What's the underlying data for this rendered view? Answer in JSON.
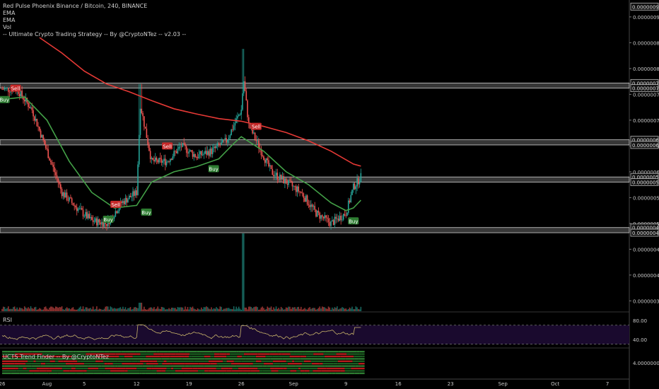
{
  "header": {
    "symbol_line": "Red Pulse Phoenix Binance / Bitcoin, 240, BINANCE",
    "indicators": [
      "EMA",
      "EMA",
      "Vol",
      "-- Ultimate Crypto Trading Strategy -- By @CryptoNTez -- v2.03 --"
    ]
  },
  "rsi_pane": {
    "label": "RSI"
  },
  "trend_pane": {
    "label": "UCTS Trend Finder -- By @CryptoNTez"
  },
  "colors": {
    "up": "#26a69a",
    "down": "#ef5350",
    "ema_slow": "#e53935",
    "ema_fast": "#43a047",
    "rsi_line": "#c8b46a",
    "rsi_band": "#1a0a2e",
    "sr_band": "#9e9e9e",
    "buy": "#2e7d32",
    "sell": "#c62828"
  },
  "chart_data": [
    {
      "type": "candlestick",
      "pane": "price",
      "x_ticks": [
        "26",
        "Aug",
        "5",
        "12",
        "19",
        "26",
        "Sep",
        "9",
        "16",
        "23",
        "Sep",
        "Oct",
        "7"
      ],
      "x_tick_positions_days": [
        0,
        6,
        11,
        18,
        25,
        32,
        39,
        46,
        53,
        60,
        67,
        74,
        81
      ],
      "y_ticks": [
        "0.00000090",
        "0.00000085",
        "0.00000080",
        "0.00000075",
        "0.00000070",
        "0.00000065",
        "0.00000060",
        "0.00000055",
        "0.00000050",
        "0.00000045",
        "0.00000040",
        "0.00000035"
      ],
      "y_tick_values": [
        9e-07,
        8.5e-07,
        8e-07,
        7.5e-07,
        7e-07,
        6.5e-07,
        6e-07,
        5.5e-07,
        5e-07,
        4.5e-07,
        4e-07,
        3.5e-07
      ],
      "ylim": [
        3.3e-07,
        9.3e-07
      ],
      "price_labels": [
        "0.00000092",
        "0.00000077",
        "0.00000076",
        "0.00000066",
        "0.00000065",
        "0.00000059",
        "0.00000058",
        "0.00000049",
        "0.00000048"
      ],
      "price_label_values": [
        9.2e-07,
        7.72e-07,
        7.62e-07,
        6.62e-07,
        6.52e-07,
        5.9e-07,
        5.8e-07,
        4.92e-07,
        4.82e-07
      ],
      "sr_bands": [
        [
          7.62e-07,
          7.72e-07
        ],
        [
          6.52e-07,
          6.62e-07
        ],
        [
          5.8e-07,
          5.9e-07
        ],
        [
          4.82e-07,
          4.92e-07
        ]
      ],
      "close_path_days": [
        0,
        2,
        4,
        6,
        8,
        10,
        12,
        14,
        16,
        18,
        18.5,
        20,
        22,
        24,
        26,
        28,
        30,
        32,
        32.3,
        33,
        34,
        36,
        38,
        40,
        42,
        44,
        46,
        47,
        48
      ],
      "close_path_values": [
        7.6e-07,
        7.6e-07,
        7.2e-07,
        6.4e-07,
        5.6e-07,
        5.3e-07,
        5.05e-07,
        5e-07,
        5.4e-07,
        5.6e-07,
        7.3e-07,
        6.2e-07,
        6.2e-07,
        6.5e-07,
        6.3e-07,
        6.4e-07,
        6.6e-07,
        7.2e-07,
        7.8e-07,
        6.9e-07,
        6.6e-07,
        6e-07,
        5.8e-07,
        5.6e-07,
        5.2e-07,
        5e-07,
        5.2e-07,
        5.7e-07,
        5.9e-07
      ],
      "ema_slow_days": [
        5,
        8,
        11,
        14,
        17,
        20,
        23,
        26,
        29,
        32,
        35,
        38,
        41,
        44,
        47,
        48
      ],
      "ema_slow_values": [
        8.6e-07,
        8.3e-07,
        7.95e-07,
        7.7e-07,
        7.55e-07,
        7.38e-07,
        7.22e-07,
        7.12e-07,
        7.03e-07,
        6.98e-07,
        6.88e-07,
        6.76e-07,
        6.6e-07,
        6.4e-07,
        6.15e-07,
        6.11e-07
      ],
      "ema_fast_days": [
        0,
        3,
        6,
        9,
        12,
        15,
        18,
        20,
        23,
        26,
        29,
        31,
        32,
        35,
        38,
        41,
        44,
        46,
        47,
        48
      ],
      "ema_fast_values": [
        7.4e-07,
        7.45e-07,
        7e-07,
        6.2e-07,
        5.6e-07,
        5.3e-07,
        5.35e-07,
        5.8e-07,
        6e-07,
        6.1e-07,
        6.25e-07,
        6.55e-07,
        6.68e-07,
        6.4e-07,
        6e-07,
        5.75e-07,
        5.4e-07,
        5.25e-07,
        5.3e-07,
        5.45e-07
      ],
      "signals": [
        {
          "label": "Sell",
          "day": 1.8,
          "value": 7.62e-07
        },
        {
          "label": "Buy",
          "day": 0.3,
          "value": 7.4e-07
        },
        {
          "label": "Buy",
          "day": 14.2,
          "value": 5.08e-07
        },
        {
          "label": "Sell",
          "day": 15.2,
          "value": 5.37e-07
        },
        {
          "label": "Buy",
          "day": 19.3,
          "value": 5.22e-07
        },
        {
          "label": "Sell",
          "day": 22.1,
          "value": 6.5e-07
        },
        {
          "label": "Buy",
          "day": 28.3,
          "value": 6.06e-07
        },
        {
          "label": "Sell",
          "day": 34.0,
          "value": 6.88e-07
        },
        {
          "label": "Buy",
          "day": 47.0,
          "value": 5.05e-07
        }
      ]
    },
    {
      "type": "line",
      "pane": "rsi",
      "y_ticks": [
        "80.00",
        "40.00"
      ],
      "y_tick_values": [
        80,
        40
      ],
      "ylim": [
        25,
        95
      ],
      "band": [
        30,
        70
      ]
    },
    {
      "type": "heatmap",
      "pane": "trend",
      "y_ticks": [
        "4.0000000"
      ],
      "rows": 10,
      "columns_end_day": 48.5
    }
  ]
}
